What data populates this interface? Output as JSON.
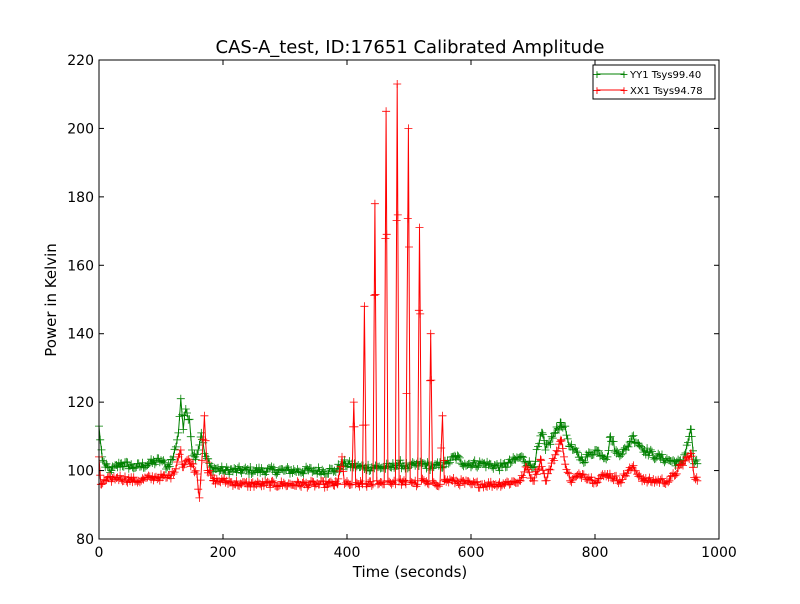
{
  "chart_data": {
    "type": "line",
    "title": "CAS-A_test, ID:17651 Calibrated Amplitude",
    "xlabel": "Time (seconds)",
    "ylabel": "Power in Kelvin",
    "xlim": [
      0,
      1000
    ],
    "ylim": [
      80,
      220
    ],
    "xticks": [
      0,
      200,
      400,
      600,
      800,
      1000
    ],
    "yticks": [
      80,
      100,
      120,
      140,
      160,
      180,
      200,
      220
    ],
    "grid": false,
    "legend_position": "top-right",
    "colors": {
      "YY1": "#008000",
      "XX1": "#ff0000"
    },
    "series": [
      {
        "name": "YY1 Tsys99.40",
        "color": "#008000",
        "baseline": 99.4,
        "noise": 1.2,
        "x_range": [
          0,
          965
        ],
        "step": 2,
        "points": [
          [
            0,
            113
          ],
          [
            2,
            109
          ],
          [
            5,
            104
          ],
          [
            10,
            101
          ],
          [
            20,
            100
          ],
          [
            35,
            102
          ],
          [
            60,
            101
          ],
          [
            80,
            102
          ],
          [
            100,
            103
          ],
          [
            110,
            101
          ],
          [
            120,
            104
          ],
          [
            128,
            111
          ],
          [
            132,
            121
          ],
          [
            136,
            112
          ],
          [
            140,
            118
          ],
          [
            146,
            115
          ],
          [
            150,
            106
          ],
          [
            155,
            104
          ],
          [
            160,
            106
          ],
          [
            165,
            111
          ],
          [
            170,
            105
          ],
          [
            180,
            101
          ],
          [
            200,
            100
          ],
          [
            250,
            100
          ],
          [
            300,
            100
          ],
          [
            350,
            100
          ],
          [
            380,
            100
          ],
          [
            395,
            102
          ],
          [
            420,
            101
          ],
          [
            430,
            101
          ],
          [
            450,
            101
          ],
          [
            470,
            101
          ],
          [
            485,
            102
          ],
          [
            500,
            101
          ],
          [
            520,
            102
          ],
          [
            540,
            101
          ],
          [
            560,
            102
          ],
          [
            575,
            104
          ],
          [
            590,
            102
          ],
          [
            620,
            102
          ],
          [
            650,
            101
          ],
          [
            680,
            104
          ],
          [
            700,
            101
          ],
          [
            715,
            111
          ],
          [
            720,
            106
          ],
          [
            745,
            114
          ],
          [
            750,
            113
          ],
          [
            760,
            107
          ],
          [
            780,
            103
          ],
          [
            800,
            106
          ],
          [
            820,
            104
          ],
          [
            825,
            110
          ],
          [
            835,
            105
          ],
          [
            850,
            106
          ],
          [
            860,
            110
          ],
          [
            870,
            108
          ],
          [
            880,
            106
          ],
          [
            900,
            104
          ],
          [
            920,
            103
          ],
          [
            940,
            102
          ],
          [
            955,
            112
          ],
          [
            960,
            102
          ],
          [
            965,
            102
          ]
        ]
      },
      {
        "name": "XX1 Tsys94.78",
        "color": "#ff0000",
        "baseline": 96.5,
        "noise": 1.0,
        "x_range": [
          0,
          965
        ],
        "step": 2,
        "points": [
          [
            0,
            104
          ],
          [
            3,
            96
          ],
          [
            10,
            97
          ],
          [
            30,
            98
          ],
          [
            60,
            97
          ],
          [
            90,
            98
          ],
          [
            110,
            98
          ],
          [
            120,
            99
          ],
          [
            128,
            104
          ],
          [
            132,
            106
          ],
          [
            135,
            101
          ],
          [
            142,
            103
          ],
          [
            150,
            102
          ],
          [
            158,
            99
          ],
          [
            162,
            92
          ],
          [
            166,
            103
          ],
          [
            170,
            116
          ],
          [
            175,
            100
          ],
          [
            185,
            97
          ],
          [
            200,
            97
          ],
          [
            230,
            96
          ],
          [
            260,
            96
          ],
          [
            300,
            96
          ],
          [
            350,
            96
          ],
          [
            385,
            96
          ],
          [
            392,
            104
          ],
          [
            396,
            96
          ],
          [
            408,
            96
          ],
          [
            411,
            120
          ],
          [
            414,
            96
          ],
          [
            425,
            96
          ],
          [
            428,
            148
          ],
          [
            431,
            96
          ],
          [
            442,
            96
          ],
          [
            445,
            178
          ],
          [
            448,
            97
          ],
          [
            460,
            96
          ],
          [
            463,
            205
          ],
          [
            466,
            97
          ],
          [
            478,
            96
          ],
          [
            481,
            213
          ],
          [
            484,
            97
          ],
          [
            495,
            96
          ],
          [
            499,
            200
          ],
          [
            502,
            97
          ],
          [
            514,
            96
          ],
          [
            517,
            171
          ],
          [
            520,
            97
          ],
          [
            532,
            96
          ],
          [
            535,
            140
          ],
          [
            538,
            97
          ],
          [
            550,
            96
          ],
          [
            554,
            116
          ],
          [
            557,
            97
          ],
          [
            570,
            97
          ],
          [
            600,
            96
          ],
          [
            640,
            96
          ],
          [
            680,
            97
          ],
          [
            690,
            101
          ],
          [
            700,
            97
          ],
          [
            713,
            103
          ],
          [
            720,
            97
          ],
          [
            745,
            109
          ],
          [
            750,
            104
          ],
          [
            760,
            97
          ],
          [
            780,
            99
          ],
          [
            800,
            97
          ],
          [
            820,
            99
          ],
          [
            840,
            97
          ],
          [
            860,
            101
          ],
          [
            880,
            97
          ],
          [
            920,
            97
          ],
          [
            955,
            105
          ],
          [
            960,
            98
          ],
          [
            965,
            97
          ]
        ]
      }
    ]
  }
}
